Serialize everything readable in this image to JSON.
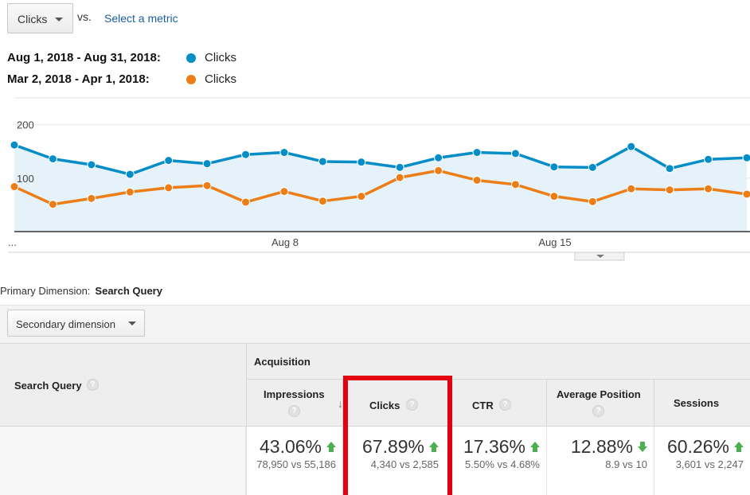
{
  "toolbar": {
    "metric_label": "Clicks",
    "vs_label": "vs.",
    "select_metric_link": "Select a metric"
  },
  "legend": [
    {
      "range": "Aug 1, 2018 - Aug 31, 2018:",
      "series": "Clicks",
      "color": "#058dc7"
    },
    {
      "range": "Mar 2, 2018 - Apr 1, 2018:",
      "series": "Clicks",
      "color": "#ed7e17"
    }
  ],
  "chart_data": {
    "type": "line",
    "x_tick_labels": [
      "...",
      "Aug 8",
      "Aug 15"
    ],
    "y_tick_labels": [
      "200",
      "100"
    ],
    "ylim": [
      0,
      250
    ],
    "series": [
      {
        "color": "#058dc7",
        "values": [
          162,
          136,
          125,
          107,
          133,
          127,
          144,
          148,
          131,
          130,
          120,
          138,
          148,
          146,
          121,
          120,
          159,
          118,
          135,
          138
        ]
      },
      {
        "color": "#ed7e17",
        "values": [
          84,
          51,
          62,
          74,
          82,
          86,
          55,
          75,
          57,
          66,
          101,
          114,
          96,
          88,
          66,
          56,
          80,
          78,
          80,
          70
        ]
      }
    ],
    "grid": true,
    "area_fill": true
  },
  "dimension": {
    "primary_label": "Primary Dimension:",
    "primary_value": "Search Query",
    "secondary_label": "Secondary dimension"
  },
  "table": {
    "search_query_header": "Search Query",
    "group_header": "Acquisition",
    "columns": [
      {
        "label": "Impressions",
        "pct": "43.06%",
        "compare": "78,950 vs 55,186",
        "trend": "up"
      },
      {
        "label": "Clicks",
        "pct": "67.89%",
        "compare": "4,340 vs 2,585",
        "trend": "up"
      },
      {
        "label": "CTR",
        "pct": "17.36%",
        "compare": "5.50% vs 4.68%",
        "trend": "up"
      },
      {
        "label": "Average Position",
        "pct": "12.88%",
        "compare": "8.9 vs 10",
        "trend": "down"
      },
      {
        "label": "Sessions",
        "pct": "60.26%",
        "compare": "3,601 vs 2,247",
        "trend": "up"
      }
    ],
    "help_glyph": "?"
  },
  "accent_colors": {
    "highlight": "#e3000f",
    "trend": "#4caf50"
  }
}
